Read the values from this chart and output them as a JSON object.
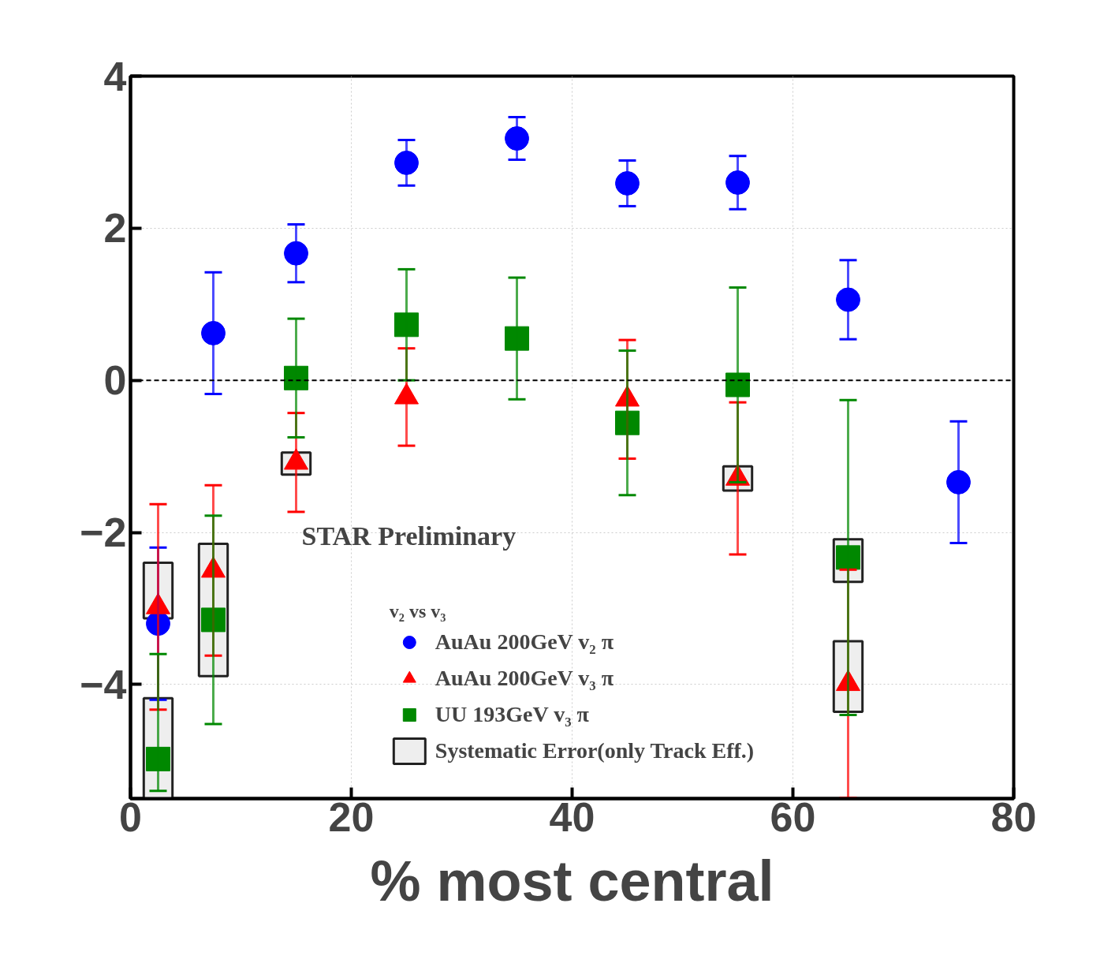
{
  "chart_data": {
    "type": "scatter",
    "xlabel": "% most central",
    "legend_title": "v₂ vs v₃",
    "annotations": [
      "STAR Preliminary"
    ],
    "xlim": [
      0,
      80
    ],
    "ylim": [
      -5.5,
      4
    ],
    "xticks": [
      0,
      20,
      40,
      60,
      80
    ],
    "yticks": [
      -4,
      -2,
      0,
      2,
      4
    ],
    "grid": true,
    "legend": "bottom",
    "ref_lines": [
      {
        "axis": "y",
        "value": 0,
        "line_style": "dashed",
        "color": "#000000"
      }
    ],
    "series": [
      {
        "type": "bar",
        "name": "Systematic Error(only Track Eff.)",
        "color": "#eeeeee",
        "x": [
          2.5,
          7.5,
          15,
          55,
          65
        ],
        "base": [
          -3.13,
          -3.89,
          -1.24,
          -1.45,
          -2.65
        ],
        "values": [
          0.73,
          1.74,
          0.29,
          0.32,
          0.56
        ]
      },
      {
        "type": "bar",
        "color": "#eeeeee",
        "x": [
          2.5,
          65
        ],
        "base": [
          -5.5,
          -4.36
        ],
        "values": [
          1.32,
          0.93
        ]
      },
      {
        "name": "AuAu 200GeV v₂ π",
        "color": "#0000ff",
        "marker": "circle",
        "x": [
          2.5,
          7.5,
          15,
          25,
          35,
          45,
          55,
          65,
          75
        ],
        "values": [
          -3.2,
          0.62,
          1.67,
          2.86,
          3.18,
          2.59,
          2.6,
          1.06,
          -1.34
        ],
        "errors": [
          1.0,
          0.8,
          0.38,
          0.3,
          0.28,
          0.3,
          0.35,
          0.52,
          0.8
        ]
      },
      {
        "name": "AuAu 200GeV v₃ π",
        "color": "#ff0000",
        "marker": "triangle",
        "x": [
          2.5,
          7.5,
          15,
          25,
          35,
          45,
          55,
          65
        ],
        "values": [
          -2.98,
          -2.5,
          -1.08,
          -0.22,
          null,
          -0.25,
          -1.29,
          -3.99
        ],
        "errors": [
          1.35,
          1.12,
          0.65,
          0.64,
          null,
          0.78,
          1.0,
          1.5
        ]
      },
      {
        "name": "UU 193GeV v₃ π",
        "color": "#008800",
        "marker": "square",
        "x": [
          2.5,
          7.5,
          15,
          25,
          35,
          45,
          55,
          65
        ],
        "values": [
          -4.98,
          -3.15,
          0.03,
          0.73,
          0.55,
          -0.56,
          -0.06,
          -2.33
        ],
        "errors": [
          [
            -5.4,
            -3.6
          ],
          1.37,
          0.78,
          0.73,
          0.8,
          0.95,
          1.28,
          2.07
        ]
      }
    ]
  }
}
